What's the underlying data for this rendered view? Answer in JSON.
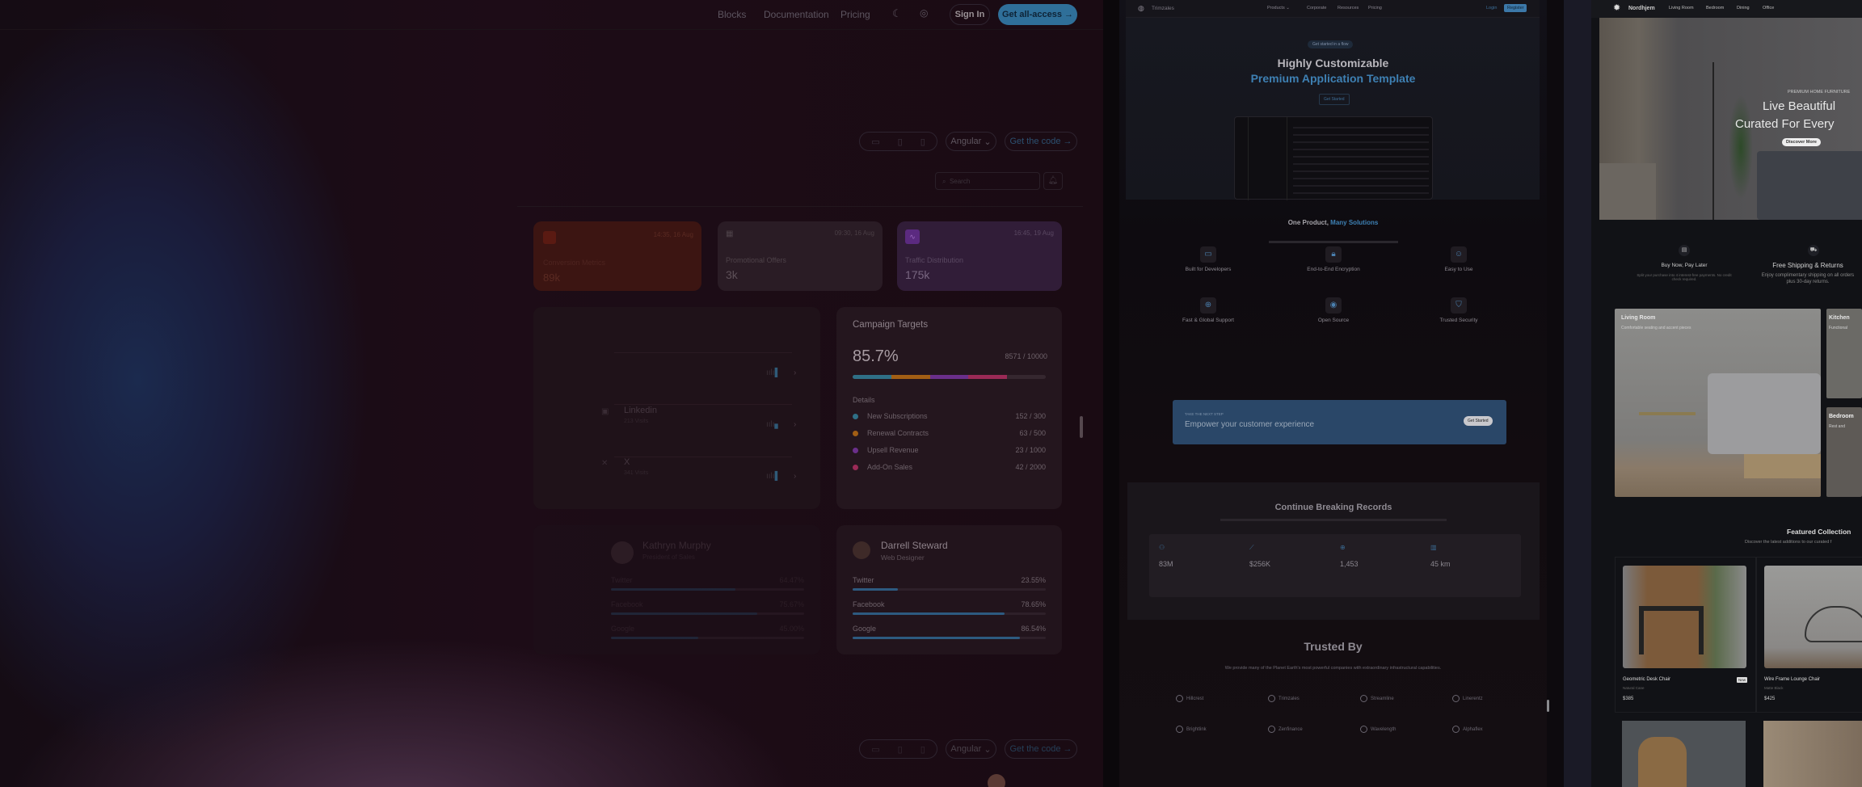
{
  "left": {
    "nav": {
      "items": [
        "Blocks",
        "Documentation",
        "Pricing"
      ],
      "sign_in": "Sign In",
      "cta": "Get all-access →",
      "icons": [
        "moon-icon",
        "github-icon"
      ]
    },
    "toolbar": {
      "framework": "Angular",
      "get_code": "Get the code →",
      "devices": [
        "desktop-icon",
        "tablet-icon",
        "mobile-icon"
      ]
    },
    "search": {
      "placeholder": "Search"
    },
    "stats": [
      {
        "title": "Conversion Metrics",
        "value": "89k",
        "time": "14:35, 16 Aug",
        "color": "#5a1f16"
      },
      {
        "title": "Promotional Offers",
        "value": "3k",
        "time": "09:30, 16 Aug",
        "color": "#2c1e28"
      },
      {
        "title": "Traffic Distribution",
        "value": "175k",
        "time": "16:45, 19 Aug",
        "color": "#3a1f44"
      }
    ],
    "social": [
      {
        "name": "",
        "views": ""
      },
      {
        "name": "Linkedin",
        "views": "213 Visits"
      },
      {
        "name": "X",
        "views": "341 Visits"
      }
    ],
    "campaign": {
      "title": "Campaign Targets",
      "percent": "85.7%",
      "count": "8571 / 10000",
      "details_label": "Details",
      "segments": [
        {
          "fraction": 0.2,
          "color": "#2f6f86"
        },
        {
          "fraction": 0.2,
          "color": "#a25e14"
        },
        {
          "fraction": 0.2,
          "color": "#6a2f8a"
        },
        {
          "fraction": 0.2,
          "color": "#9a2a56"
        }
      ],
      "items": [
        {
          "label": "New Subscriptions",
          "value": "152 / 300",
          "color": "#2f6f86"
        },
        {
          "label": "Renewal Contracts",
          "value": "63 / 500",
          "color": "#a25e14"
        },
        {
          "label": "Upsell Revenue",
          "value": "23 / 1000",
          "color": "#6a2f8a"
        },
        {
          "label": "Add-On Sales",
          "value": "42 / 2000",
          "color": "#9a2a56"
        }
      ]
    },
    "people": [
      {
        "name": "Kathryn Murphy",
        "role": "President of Sales",
        "stats": [
          {
            "label": "Twitter",
            "value": "64.47%",
            "pct": 64.47
          },
          {
            "label": "Facebook",
            "value": "75.67%",
            "pct": 75.67
          },
          {
            "label": "Google",
            "value": "45.00%",
            "pct": 45
          }
        ]
      },
      {
        "name": "Darrell Steward",
        "role": "Web Designer",
        "stats": [
          {
            "label": "Twitter",
            "value": "23.55%",
            "pct": 23.55
          },
          {
            "label": "Facebook",
            "value": "78.65%",
            "pct": 78.65
          },
          {
            "label": "Google",
            "value": "86.54%",
            "pct": 86.54
          }
        ]
      }
    ],
    "bottom_toolbar": {
      "framework": "Angular",
      "get_code": "Get the code →"
    }
  },
  "middle": {
    "nav": {
      "brand": "Trimzales",
      "items": [
        "Products",
        "Corporate",
        "Resources",
        "Pricing"
      ],
      "login": "Login",
      "register": "Register"
    },
    "hero": {
      "badge": "Get started in a flow",
      "title": "Highly Customizable",
      "subtitle": "Premium Application Template",
      "button": "Get Started"
    },
    "features": {
      "title": "One Product,",
      "title_accent": "Many Solutions",
      "items": [
        "Built for Developers",
        "End-to-End Encryption",
        "Easy to Use",
        "Fast & Global Support",
        "Open Source",
        "Trusted Security"
      ]
    },
    "cta": {
      "eyebrow": "TAKE THE NEXT STEP",
      "title": "Empower your customer experience",
      "button": "Get Started"
    },
    "records": {
      "title": "Continue Breaking Records",
      "stats": [
        "83M",
        "$256K",
        "1,453",
        "45 km"
      ]
    },
    "trusted": {
      "title": "Trusted By",
      "subtitle": "We provide many of the Planet Earth's most powerful companies with extraordinary infrastructural capabilities.",
      "logos": [
        "Hillcrest",
        "Trimzales",
        "Streamline",
        "Linerentz",
        "Brightlink",
        "Zenfinance",
        "Wavelength",
        "Alphaflex"
      ]
    }
  },
  "right": {
    "nav": {
      "brand": "Nordhjem",
      "items": [
        "Living Room",
        "Bedroom",
        "Dining",
        "Office"
      ]
    },
    "hero": {
      "eyebrow": "PREMIUM HOME FURNITURE",
      "title1": "Live Beautiful",
      "title2": "Curated For Every",
      "button": "Discover More"
    },
    "perks": [
      {
        "title": "Buy Now, Pay Later",
        "desc": "Split your purchase into 4 interest-free payments. No credit check required."
      },
      {
        "title": "Free Shipping & Returns",
        "desc": "Enjoy complimentary shipping on all orders plus 30-day returns."
      }
    ],
    "rooms": [
      {
        "title": "Living Room",
        "desc": "Comfortable seating and accent pieces"
      },
      {
        "title": "Kitchen",
        "desc": "Functional"
      },
      {
        "title": "Bedroom",
        "desc": "Rest and"
      }
    ],
    "featured": {
      "title": "Featured Collection",
      "subtitle": "Discover the latest additions to our curated f"
    },
    "products": [
      {
        "name": "Geometric Desk Chair",
        "material": "Natural Cane",
        "price": "$385",
        "badge": "New"
      },
      {
        "name": "Wire Frame Lounge Chair",
        "material": "Matte Black",
        "price": "$425"
      }
    ]
  }
}
